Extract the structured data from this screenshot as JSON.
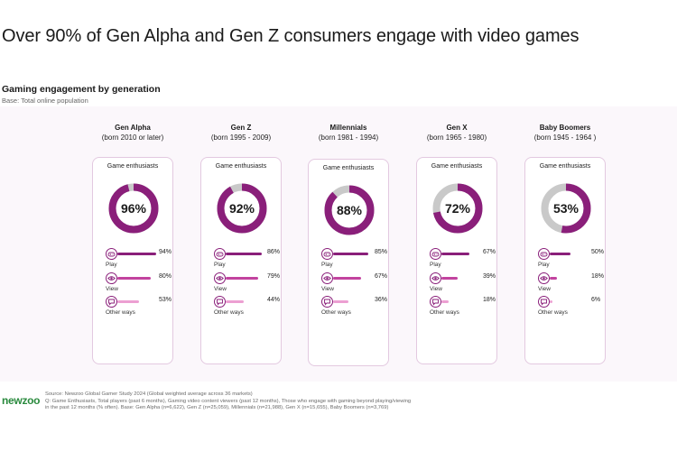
{
  "headline": "Over 90% of Gen Alpha and Gen Z consumers engage with video games",
  "subtitle": "Gaming engagement by generation",
  "base_note": "Base: Total online population",
  "logo": "newzoo",
  "source_lines": [
    "Source: Newzoo Global Gamer Study 2024 (Global weighted average across 36 markets)",
    "Q: Game Enthusiasts, Total players (past 6 months), Gaming video content viewers (past 12 months), Those who engage with gaming beyond playing/viewing",
    "in the past 12 months (% often). Base: Gen Alpha (n=6,622), Gen Z (n=25,059), Millennials (n=21,988), Gen X (n=15,655), Baby Boomers (n=3,769)"
  ],
  "colors": {
    "accent": "#8a1f7a",
    "bar_play": "#8a1f7a",
    "bar_view": "#c2439f",
    "bar_other": "#ec9fd2",
    "donut_track": "#c9c9c9"
  },
  "icons": [
    "controller-icon",
    "eye-icon",
    "chat-icon"
  ],
  "chart_data": {
    "type": "donut",
    "title": "Gaming engagement by generation",
    "card_label": "Game enthusiasts",
    "unit": "%",
    "metrics": [
      "Play",
      "View",
      "Other ways"
    ],
    "generations": [
      {
        "name": "Gen Alpha",
        "born": "(born 2010 or later)",
        "enthusiasts": 96,
        "enthusiasts_label": "96%",
        "values": [
          94,
          80,
          53
        ],
        "value_labels": [
          "94%",
          "80%",
          "53%"
        ]
      },
      {
        "name": "Gen Z",
        "born": "(born 1995 - 2009)",
        "enthusiasts": 92,
        "enthusiasts_label": "92%",
        "values": [
          86,
          79,
          44
        ],
        "value_labels": [
          "86%",
          "79%",
          "44%"
        ]
      },
      {
        "name": "Millennials",
        "born": "(born 1981 - 1994)",
        "enthusiasts": 88,
        "enthusiasts_label": "88%",
        "values": [
          85,
          67,
          36
        ],
        "value_labels": [
          "85%",
          "67%",
          "36%"
        ]
      },
      {
        "name": "Gen X",
        "born": "(born 1965 - 1980)",
        "enthusiasts": 72,
        "enthusiasts_label": "72%",
        "values": [
          67,
          39,
          18
        ],
        "value_labels": [
          "67%",
          "39%",
          "18%"
        ]
      },
      {
        "name": "Baby Boomers",
        "born": "(born 1945 - 1964 )",
        "enthusiasts": 53,
        "enthusiasts_label": "53%",
        "values": [
          50,
          18,
          6
        ],
        "value_labels": [
          "50%",
          "18%",
          "6%"
        ]
      }
    ]
  }
}
